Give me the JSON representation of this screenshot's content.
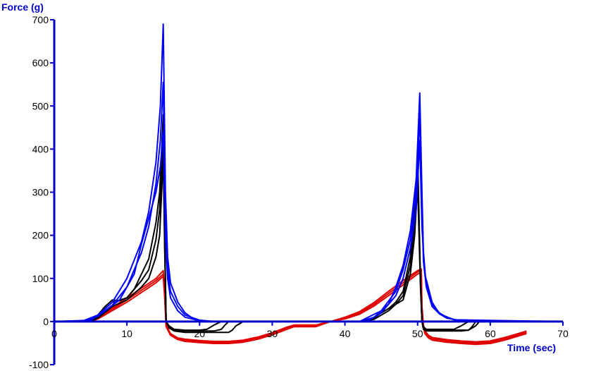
{
  "chart_data": {
    "type": "line",
    "title": "",
    "xlabel": "Time (sec)",
    "ylabel": "Force (g)",
    "xlim": [
      0,
      70
    ],
    "ylim": [
      -100,
      700
    ],
    "x_ticks": [
      0,
      10,
      20,
      30,
      40,
      50,
      60,
      70
    ],
    "y_ticks": [
      -100,
      0,
      100,
      200,
      300,
      400,
      500,
      600,
      700
    ],
    "grid": false,
    "legend": "none",
    "colors": {
      "axis": "#0000cc",
      "blue": "#0000ff",
      "black": "#000000",
      "red": "#e00000"
    },
    "series": [
      {
        "color": "#0000ff",
        "x": [
          0,
          4,
          6,
          8,
          10,
          12,
          13,
          14,
          14.6,
          15,
          15.3,
          15.6,
          16,
          17,
          18,
          19,
          20,
          22,
          42,
          44,
          46,
          47,
          48,
          49,
          49.8,
          50.3,
          50.6,
          50.8,
          51.1,
          51.5,
          52,
          53,
          54,
          55,
          56,
          58,
          75
        ],
        "y": [
          0,
          2,
          15,
          45,
          100,
          185,
          255,
          370,
          500,
          690,
          300,
          150,
          90,
          45,
          20,
          8,
          3,
          0,
          0,
          10,
          40,
          80,
          130,
          210,
          330,
          530,
          300,
          160,
          100,
          65,
          40,
          20,
          10,
          5,
          2,
          0,
          0
        ]
      },
      {
        "color": "#0000ff",
        "x": [
          0,
          4,
          6,
          8,
          10,
          12,
          13,
          14,
          14.6,
          15,
          15.3,
          15.6,
          16,
          17,
          18,
          20,
          22,
          42,
          45,
          47,
          48,
          49,
          49.8,
          50.3,
          50.6,
          50.8,
          51.2,
          52,
          53,
          54,
          56,
          75
        ],
        "y": [
          0,
          1,
          12,
          38,
          80,
          160,
          220,
          320,
          420,
          555,
          250,
          120,
          70,
          35,
          15,
          3,
          0,
          0,
          25,
          70,
          120,
          190,
          300,
          480,
          260,
          140,
          80,
          35,
          18,
          8,
          2,
          0
        ]
      },
      {
        "color": "#0000ff",
        "x": [
          0,
          5,
          7,
          9,
          11,
          12,
          13,
          14,
          14.6,
          15,
          15.3,
          15.6,
          16,
          17,
          18,
          20,
          22,
          43,
          45,
          47,
          48,
          49,
          49.8,
          50.3,
          50.6,
          51,
          52,
          53,
          55,
          75
        ],
        "y": [
          0,
          3,
          25,
          50,
          110,
          180,
          240,
          300,
          360,
          440,
          200,
          100,
          55,
          25,
          10,
          2,
          0,
          0,
          20,
          60,
          100,
          170,
          260,
          420,
          220,
          110,
          45,
          18,
          4,
          0
        ]
      },
      {
        "color": "#000000",
        "x": [
          0,
          5,
          6,
          7,
          8,
          9,
          10,
          11,
          12,
          13,
          14,
          14.5,
          15,
          15.2,
          15.4,
          15.8,
          16.5,
          18,
          20,
          22,
          24,
          24.5,
          25,
          26,
          30,
          42,
          44,
          45,
          46,
          47,
          48,
          49,
          49.6,
          50,
          50.4,
          50.6,
          50.8,
          51.2,
          52,
          54,
          56,
          57,
          58,
          58.5,
          59,
          60,
          65,
          75
        ],
        "y": [
          0,
          2,
          15,
          35,
          50,
          48,
          55,
          75,
          110,
          145,
          230,
          300,
          480,
          200,
          0,
          -15,
          -22,
          -25,
          -25,
          -25,
          -25,
          -20,
          -10,
          0,
          0,
          0,
          8,
          20,
          30,
          45,
          70,
          150,
          260,
          390,
          100,
          0,
          -18,
          -22,
          -22,
          -22,
          -22,
          -20,
          -10,
          0,
          0,
          0,
          0,
          0
        ]
      },
      {
        "color": "#000000",
        "x": [
          0,
          5,
          6,
          7,
          8,
          10,
          12,
          13,
          14,
          14.5,
          15,
          15.2,
          15.4,
          15.8,
          16.5,
          18,
          20,
          22,
          23,
          23.5,
          24,
          25,
          30,
          42,
          44,
          46,
          47,
          48,
          49,
          49.6,
          50,
          50.4,
          50.6,
          50.8,
          51.2,
          52,
          54,
          56,
          57,
          57.5,
          58,
          60,
          65,
          75
        ],
        "y": [
          0,
          1,
          10,
          30,
          45,
          55,
          95,
          120,
          190,
          260,
          430,
          180,
          0,
          -12,
          -20,
          -22,
          -22,
          -22,
          -18,
          -8,
          0,
          0,
          0,
          0,
          5,
          25,
          40,
          60,
          130,
          230,
          350,
          90,
          0,
          -15,
          -20,
          -20,
          -20,
          -20,
          -20,
          -12,
          0,
          0,
          0,
          0
        ]
      },
      {
        "color": "#000000",
        "x": [
          0,
          5,
          6,
          8,
          10,
          12,
          13,
          14,
          14.5,
          15,
          15.2,
          15.4,
          15.8,
          16.5,
          18,
          20,
          21,
          22,
          23,
          25,
          30,
          43,
          44,
          46,
          48,
          49,
          49.6,
          50,
          50.4,
          50.6,
          50.8,
          51.2,
          52,
          54,
          55,
          56,
          57,
          60,
          65,
          75
        ],
        "y": [
          0,
          1,
          8,
          35,
          50,
          80,
          100,
          150,
          200,
          380,
          160,
          0,
          -10,
          -18,
          -20,
          -20,
          -18,
          -8,
          0,
          0,
          0,
          0,
          10,
          30,
          50,
          110,
          200,
          320,
          80,
          0,
          -12,
          -18,
          -18,
          -18,
          -18,
          -10,
          0,
          0,
          0,
          0
        ]
      },
      {
        "color": "#e00000",
        "x": [
          0,
          5,
          6,
          10,
          14,
          15,
          15.2,
          15.4,
          16,
          17,
          18,
          20,
          22,
          24,
          26,
          28,
          30,
          32,
          33,
          35,
          36,
          37,
          38,
          40,
          42,
          44,
          46,
          48,
          50,
          50.5,
          50.6,
          50.8,
          51,
          51.5,
          52,
          54,
          56,
          58,
          60,
          62,
          64,
          65
        ],
        "y": [
          0,
          0,
          8,
          50,
          95,
          110,
          60,
          -10,
          -30,
          -40,
          -43,
          -46,
          -48,
          -48,
          -45,
          -38,
          -28,
          -15,
          -10,
          -10,
          -10,
          -5,
          0,
          8,
          20,
          40,
          65,
          90,
          115,
          120,
          30,
          -10,
          -25,
          -35,
          -40,
          -45,
          -48,
          -50,
          -48,
          -40,
          -30,
          -25
        ]
      },
      {
        "color": "#e00000",
        "x": [
          0,
          5,
          6,
          10,
          14,
          15,
          15.2,
          15.4,
          16,
          17,
          18,
          20,
          22,
          24,
          26,
          28,
          30,
          32,
          33,
          35,
          36,
          37,
          38,
          40,
          42,
          44,
          46,
          48,
          50,
          50.5,
          50.6,
          50.8,
          51,
          51.5,
          52,
          54,
          56,
          58,
          60,
          62,
          64,
          65
        ],
        "y": [
          0,
          0,
          6,
          45,
          90,
          105,
          55,
          -12,
          -32,
          -42,
          -46,
          -49,
          -51,
          -51,
          -48,
          -41,
          -31,
          -18,
          -12,
          -12,
          -12,
          -6,
          0,
          6,
          17,
          36,
          60,
          85,
          110,
          115,
          25,
          -12,
          -28,
          -38,
          -43,
          -48,
          -51,
          -53,
          -51,
          -43,
          -33,
          -28
        ]
      },
      {
        "color": "#e00000",
        "x": [
          0,
          5,
          6,
          10,
          14,
          15,
          15.2,
          15.4,
          16,
          17,
          18,
          20,
          22,
          24,
          26,
          28,
          30,
          32,
          33,
          35,
          36,
          37,
          38,
          40,
          42,
          44,
          46,
          48,
          50,
          50.5,
          50.6,
          50.8,
          51,
          51.5,
          52,
          54,
          56,
          58,
          60,
          62,
          64,
          65
        ],
        "y": [
          0,
          0,
          10,
          55,
          100,
          118,
          65,
          -8,
          -28,
          -38,
          -41,
          -44,
          -46,
          -46,
          -43,
          -36,
          -26,
          -13,
          -8,
          -8,
          -8,
          -4,
          0,
          10,
          23,
          44,
          70,
          95,
          118,
          122,
          35,
          -8,
          -22,
          -32,
          -37,
          -42,
          -45,
          -47,
          -45,
          -37,
          -27,
          -22
        ]
      }
    ]
  }
}
